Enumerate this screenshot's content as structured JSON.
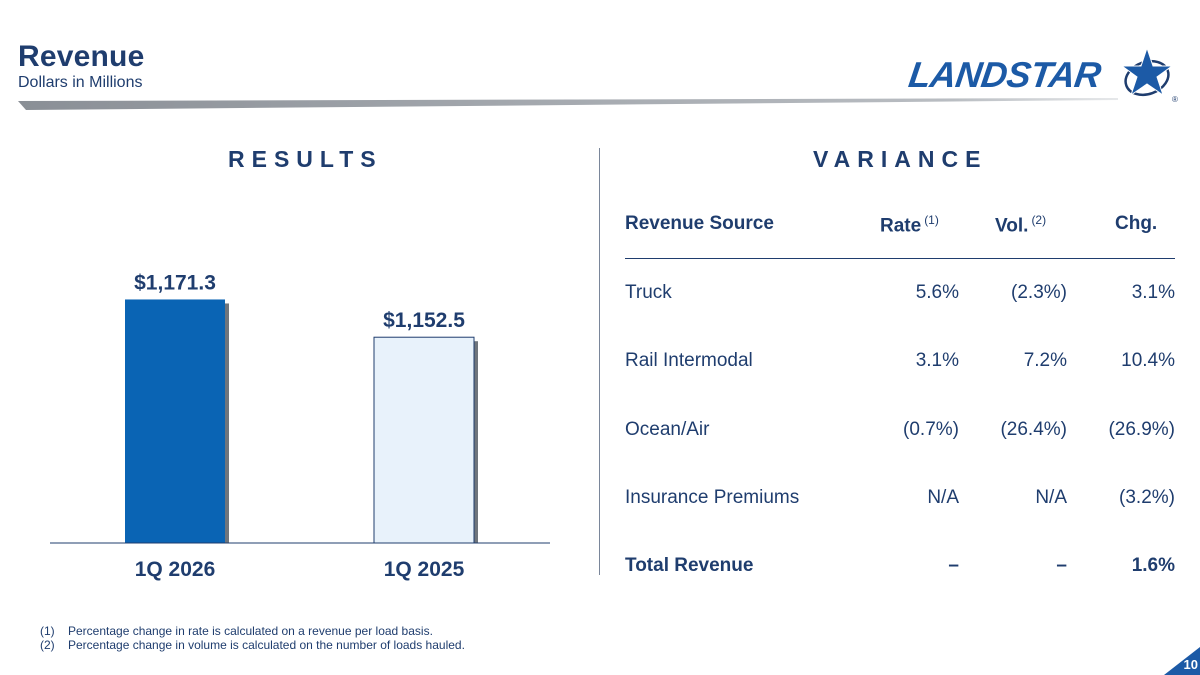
{
  "header": {
    "title": "Revenue",
    "subtitle": "Dollars in Millions",
    "logo_text": "LANDSTAR",
    "registered_mark": "®"
  },
  "results": {
    "title": "RESULTS"
  },
  "variance": {
    "title": "VARIANCE",
    "columns": {
      "source": "Revenue Source",
      "rate": "Rate",
      "rate_note": "(1)",
      "vol": "Vol.",
      "vol_note": "(2)",
      "chg": "Chg."
    },
    "rows": [
      {
        "label": "Truck",
        "rate": "5.6%",
        "vol": "(2.3%)",
        "chg": "3.1%"
      },
      {
        "label": "Rail Intermodal",
        "rate": "3.1%",
        "vol": "7.2%",
        "chg": "10.4%"
      },
      {
        "label": "Ocean/Air",
        "rate": "(0.7%)",
        "vol": "(26.4%)",
        "chg": "(26.9%)"
      },
      {
        "label": "Insurance Premiums",
        "rate": "N/A",
        "vol": "N/A",
        "chg": "(3.2%)"
      },
      {
        "label": "Total Revenue",
        "rate": "–",
        "vol": "–",
        "chg": "1.6%"
      }
    ]
  },
  "chart_data": {
    "type": "bar",
    "title": "RESULTS",
    "categories": [
      "1Q 2026",
      "1Q 2025"
    ],
    "values": [
      1171.3,
      1152.5
    ],
    "data_labels": [
      "$1,171.3",
      "$1,152.5"
    ],
    "ylim": [
      1050,
      1180
    ],
    "colors": [
      "#0a64b4",
      "#e8f2fb"
    ],
    "grid": false,
    "xlabel": "",
    "ylabel": ""
  },
  "footnotes": [
    {
      "num": "(1)",
      "text": "Percentage change in rate is calculated on a revenue per load basis."
    },
    {
      "num": "(2)",
      "text": "Percentage change in volume is calculated on the number of loads hauled."
    }
  ],
  "page_number": "10",
  "colors": {
    "brand": "#1c5aa6",
    "text": "#1f3d6e"
  }
}
